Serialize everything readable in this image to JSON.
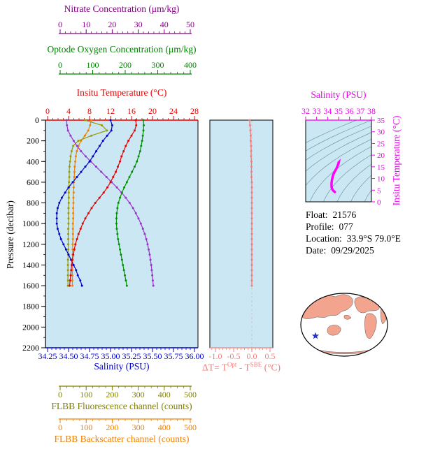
{
  "plot_bg_note": "light blue plot panels",
  "chart_data": {
    "type": "line",
    "plot_bg": "#CBE7F3",
    "main_profile": {
      "pressure_db": [
        0,
        50,
        100,
        150,
        200,
        250,
        300,
        350,
        400,
        450,
        500,
        550,
        600,
        650,
        700,
        750,
        800,
        850,
        900,
        950,
        1000,
        1050,
        1100,
        1150,
        1200,
        1250,
        1300,
        1350,
        1400,
        1450,
        1500,
        1550,
        1600
      ],
      "series": [
        {
          "key": "temperature",
          "name": "Insitu Temperature",
          "units": "°C",
          "color": "#E60000",
          "values": [
            16.8,
            16.9,
            16.6,
            16.0,
            15.4,
            14.9,
            14.5,
            14.1,
            13.8,
            13.4,
            13.0,
            12.5,
            12.0,
            11.4,
            10.7,
            9.9,
            9.1,
            8.4,
            7.8,
            7.2,
            6.7,
            6.3,
            5.9,
            5.6,
            5.3,
            5.1,
            4.9,
            4.7,
            4.6,
            4.5,
            4.4,
            4.3,
            4.2
          ]
        },
        {
          "key": "salinity",
          "name": "Salinity",
          "units": "PSU",
          "color": "#0000CC",
          "values": [
            35.0,
            35.02,
            35.01,
            34.96,
            34.91,
            34.87,
            34.83,
            34.79,
            34.75,
            34.7,
            34.65,
            34.6,
            34.55,
            34.5,
            34.46,
            34.42,
            34.39,
            34.37,
            34.36,
            34.36,
            34.36,
            34.37,
            34.39,
            34.41,
            34.44,
            34.47,
            34.5,
            34.53,
            34.56,
            34.59,
            34.61,
            34.64,
            34.66
          ]
        },
        {
          "key": "oxygen",
          "name": "Optode Oxygen Concentration",
          "units": "μm/kg",
          "color": "#009000",
          "values": [
            256,
            257,
            256,
            254,
            252,
            249,
            246,
            241,
            236,
            229,
            221,
            213,
            205,
            197,
            190,
            184,
            179,
            176,
            174,
            173,
            173,
            174,
            176,
            178,
            181,
            184,
            187,
            190,
            193,
            196,
            199,
            202,
            205
          ]
        },
        {
          "key": "nitrate",
          "name": "Nitrate Concentration",
          "units": "μm/kg",
          "color": "#9932CC",
          "values": [
            2.5,
            2.6,
            3.0,
            4.0,
            5.2,
            6.5,
            8.0,
            9.8,
            11.8,
            13.8,
            15.8,
            17.8,
            19.8,
            21.8,
            23.6,
            25.2,
            26.7,
            28.0,
            29.1,
            30.1,
            31.0,
            31.8,
            32.5,
            33.1,
            33.6,
            34.0,
            34.4,
            34.7,
            35.0,
            35.2,
            35.4,
            35.6,
            35.8
          ]
        },
        {
          "key": "fluorescence",
          "name": "FLBB Fluorescence channel",
          "units": "counts",
          "color": "#999900",
          "values": [
            95,
            160,
            180,
            120,
            70,
            50,
            44,
            40,
            38,
            36,
            35,
            35,
            34,
            34,
            33,
            33,
            33,
            32,
            32,
            32,
            32,
            31,
            31,
            31,
            31,
            31,
            31,
            30,
            30,
            30,
            30,
            30,
            30
          ]
        },
        {
          "key": "backscatter",
          "name": "FLBB Backscatter channel",
          "units": "counts",
          "color": "#F08000",
          "values": [
            120,
            115,
            108,
            95,
            80,
            70,
            64,
            60,
            58,
            56,
            55,
            54,
            53,
            52,
            52,
            51,
            51,
            50,
            50,
            50,
            49,
            49,
            49,
            49,
            48,
            48,
            48,
            48,
            48,
            47,
            47,
            47,
            47
          ]
        }
      ]
    },
    "delta_profile": {
      "color": "#F47C7C",
      "values": [
        -0.06,
        -0.05,
        -0.04,
        -0.03,
        -0.03,
        -0.02,
        -0.02,
        -0.02,
        -0.01,
        -0.01,
        -0.01,
        -0.01,
        0,
        0,
        0,
        0,
        0,
        0,
        0,
        0,
        0,
        0,
        0,
        0,
        0,
        0,
        0,
        0,
        0,
        0,
        0,
        0,
        0
      ]
    },
    "ts_diagram": {
      "curve_color": "#FF00FF",
      "isopycnal_color": "#4A7F8C",
      "isopycnal_sigmas": [
        21,
        22,
        23,
        24,
        25,
        26,
        27,
        28,
        29,
        30
      ]
    },
    "axes": {
      "nitrate": {
        "title": "Nitrate Concentration (μm/kg)",
        "color": "#880088",
        "min": 0,
        "max": 50,
        "tick_values": [
          0,
          10,
          20,
          30,
          40,
          50
        ],
        "tick_labels": [
          "0",
          "10",
          "20",
          "30",
          "40",
          "50"
        ]
      },
      "oxygen": {
        "title": "Optode Oxygen Concentration (μm/kg)",
        "color": "#008000",
        "min": 0,
        "max": 400,
        "tick_values": [
          0,
          100,
          200,
          300,
          400
        ],
        "tick_labels": [
          "0",
          "100",
          "200",
          "300",
          "400"
        ]
      },
      "temperature": {
        "title": "Insitu Temperature (°C)",
        "color": "#E60000",
        "min": 0,
        "max": 28,
        "tick_values": [
          0,
          4,
          8,
          12,
          16,
          20,
          24,
          28
        ],
        "tick_labels": [
          "0",
          "4",
          "8",
          "12",
          "16",
          "20",
          "24",
          "28"
        ]
      },
      "salinity": {
        "title": "Salinity (PSU)",
        "color": "#0000CC",
        "min": 34.25,
        "max": 36.0,
        "tick_values": [
          34.25,
          34.5,
          34.75,
          35.0,
          35.25,
          35.5,
          35.75,
          36.0
        ],
        "tick_labels": [
          "34.25",
          "34.50",
          "34.75",
          "35.00",
          "35.25",
          "35.50",
          "35.75",
          "36.00"
        ]
      },
      "fluorescence": {
        "title": "FLBB Fluorescence channel (counts)",
        "color": "#808000",
        "min": 0,
        "max": 500,
        "tick_values": [
          0,
          100,
          200,
          300,
          400,
          500
        ],
        "tick_labels": [
          "0",
          "100",
          "200",
          "300",
          "400",
          "500"
        ]
      },
      "backscatter": {
        "title": "FLBB Backscatter channel (counts)",
        "color": "#F08000",
        "min": 0,
        "max": 500,
        "tick_values": [
          0,
          100,
          200,
          300,
          400,
          500
        ],
        "tick_labels": [
          "0",
          "100",
          "200",
          "300",
          "400",
          "500"
        ]
      },
      "pressure": {
        "title": "Pressure (decibar)",
        "color": "#000000",
        "min": 0,
        "max": 2200,
        "tick_values": [
          0,
          200,
          400,
          600,
          800,
          1000,
          1200,
          1400,
          1600,
          1800,
          2000,
          2200
        ],
        "tick_labels": [
          "0",
          "200",
          "400",
          "600",
          "800",
          "1000",
          "1200",
          "1400",
          "1600",
          "1800",
          "2000",
          "2200"
        ]
      },
      "delta": {
        "title_t1": "ΔT= T",
        "title_sup1": "Opt",
        "title_t2": " - T",
        "title_sup2": "SBE",
        "title_t3": " (°C)",
        "color": "#F47C7C",
        "min": -1.15,
        "max": 0.58,
        "tick_values": [
          -1.0,
          -0.5,
          0.0,
          0.5
        ],
        "tick_labels": [
          "-1.0",
          "-0.5",
          "0.0",
          "0.5"
        ]
      },
      "ts_salinity": {
        "title": "Salinity (PSU)",
        "color": "#EE00EE",
        "min": 32,
        "max": 38,
        "tick_values": [
          32,
          33,
          34,
          35,
          36,
          37,
          38
        ],
        "tick_labels": [
          "32",
          "33",
          "34",
          "35",
          "36",
          "37",
          "38"
        ]
      },
      "ts_temperature": {
        "title": "Insitu Temperature (°C)",
        "color": "#EE00EE",
        "min": 0,
        "max": 35,
        "tick_values": [
          0,
          5,
          10,
          15,
          20,
          25,
          30,
          35
        ],
        "tick_labels": [
          "0",
          "5",
          "10",
          "15",
          "20",
          "25",
          "30",
          "35"
        ]
      }
    }
  },
  "info": {
    "rows": [
      {
        "label": "Float:",
        "value": "21576"
      },
      {
        "label": "Profile:",
        "value": "077"
      },
      {
        "label": "Location:",
        "value": "33.9°S  79.0°E"
      },
      {
        "label": "Date:",
        "value": "09/29/2025"
      }
    ]
  },
  "map": {
    "land_color": "#F2A48F",
    "ocean_color": "#FFFFFF",
    "outline_color": "#000000",
    "star_color": "#2233CC"
  }
}
